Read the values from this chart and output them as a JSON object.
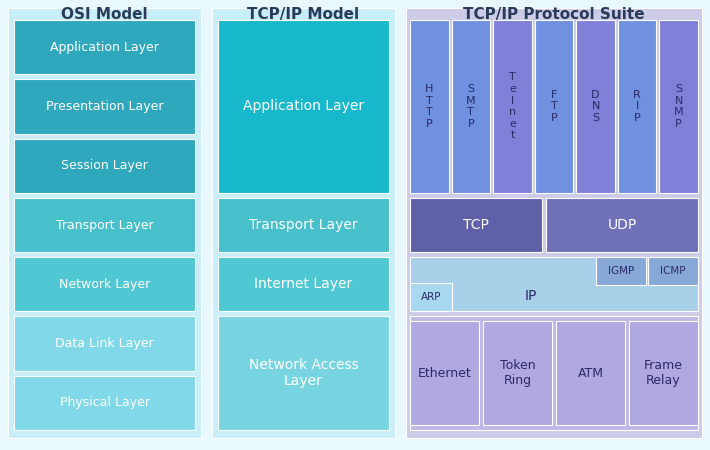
{
  "fig_w": 7.1,
  "fig_h": 4.5,
  "dpi": 100,
  "bg_color": "#e8f8fc",
  "osi_bg": "#c8eef8",
  "tcp_bg": "#c8eef8",
  "suite_bg": "#cccce8",
  "osi_box_colors": [
    "#2fa8be",
    "#2fa8be",
    "#2fa8be",
    "#48c0cc",
    "#50c8d4",
    "#80d8e8",
    "#80d8e8"
  ],
  "tcp_app_color": "#18b8cc",
  "tcp_transport_color": "#48c0cc",
  "tcp_internet_color": "#50c8d4",
  "tcp_network_color": "#78d4e0",
  "suite_app_colors": [
    "#7090e0",
    "#7090e0",
    "#8080d8",
    "#7090e0",
    "#8080d8",
    "#7090e0",
    "#8080d8"
  ],
  "suite_tcp_color": "#6060a8",
  "suite_udp_color": "#7070b8",
  "suite_inet_bg": "#a8d0e8",
  "suite_inet_arp_color": "#a8d8f0",
  "suite_inet_igmp_color": "#88a8d8",
  "suite_inet_icmp_color": "#88a8d8",
  "suite_net_bg": "#c0b8e8",
  "suite_net_box_color": "#b0a8e0",
  "title_osi": "OSI Model",
  "title_tcp": "TCP/IP Model",
  "title_suite": "TCP/IP Protocol Suite",
  "osi_layers": [
    "Application Layer",
    "Presentation Layer",
    "Session Layer",
    "Transport Layer",
    "Network Layer",
    "Data Link Layer",
    "Physical Layer"
  ],
  "tcp_layers": [
    "Application Layer",
    "Transport Layer",
    "Internet Layer",
    "Network Access\nLayer"
  ],
  "proto_labels": [
    "H\nT\nT\nP",
    "S\nM\nT\nP",
    "T\ne\nl\nn\ne\nt",
    "F\nT\nP",
    "D\nN\nS",
    "R\nI\nP",
    "S\nN\nM\nP"
  ],
  "net_labels": [
    "Ethernet",
    "Token\nRing",
    "ATM",
    "Frame\nRelay"
  ],
  "title_color": "#2a3a5a",
  "osi_text_color": "#ffffff",
  "suite_text_dark": "#2a2a6a"
}
